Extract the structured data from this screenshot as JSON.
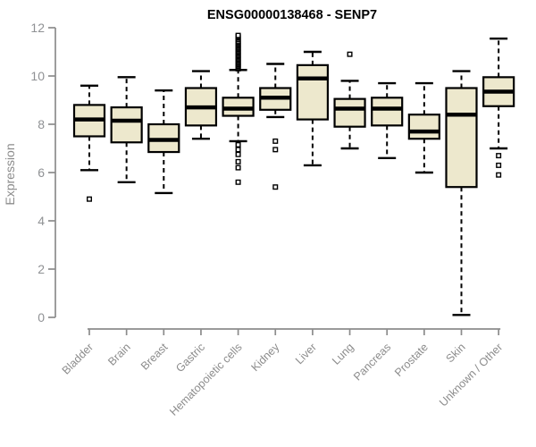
{
  "title": "ENSG00000138468 - SENP7",
  "colors": {
    "background": "#ffffff",
    "box_fill": "#ede8cd",
    "box_stroke": "#000000",
    "median": "#000000",
    "whisker": "#000000",
    "outlier_stroke": "#000000",
    "outlier_fill": "#ffffff",
    "axis": "#8c8c8c",
    "tick_label": "#8f9194",
    "category_label": "#8c8c8c",
    "title_color": "#000000"
  },
  "chart_data": {
    "type": "boxplot",
    "title": "ENSG00000138468 - SENP7",
    "xlabel": "",
    "ylabel": "Expression",
    "ylim": [
      0,
      12
    ],
    "yticks": [
      0,
      2,
      4,
      6,
      8,
      10,
      12
    ],
    "grid": false,
    "legend": false,
    "categories": [
      "Bladder",
      "Brain",
      "Breast",
      "Gastric",
      "Hematopoietic cells",
      "Kidney",
      "Liver",
      "Lung",
      "Pancreas",
      "Prostate",
      "Skin",
      "Unknown / Other"
    ],
    "series": [
      {
        "name": "Bladder",
        "whisker_low": 6.1,
        "q1": 7.5,
        "median": 8.2,
        "q3": 8.8,
        "whisker_high": 9.6,
        "outliers": [
          4.9
        ]
      },
      {
        "name": "Brain",
        "whisker_low": 5.6,
        "q1": 7.25,
        "median": 8.15,
        "q3": 8.7,
        "whisker_high": 9.95,
        "outliers": []
      },
      {
        "name": "Breast",
        "whisker_low": 5.15,
        "q1": 6.85,
        "median": 7.35,
        "q3": 8.0,
        "whisker_high": 9.4,
        "outliers": []
      },
      {
        "name": "Gastric",
        "whisker_low": 7.4,
        "q1": 7.95,
        "median": 8.7,
        "q3": 9.5,
        "whisker_high": 10.2,
        "outliers": []
      },
      {
        "name": "Hematopoietic cells",
        "whisker_low": 7.3,
        "q1": 8.35,
        "median": 8.65,
        "q3": 9.1,
        "whisker_high": 10.25,
        "outliers": [
          10.3,
          10.35,
          10.4,
          10.45,
          10.5,
          10.55,
          10.6,
          10.65,
          10.7,
          10.75,
          10.8,
          10.85,
          10.9,
          10.95,
          11.0,
          11.05,
          11.1,
          11.15,
          11.2,
          11.25,
          11.3,
          11.35,
          11.4,
          11.45,
          11.52,
          11.58,
          11.63,
          11.68,
          7.15,
          6.95,
          6.75,
          6.45,
          6.2,
          5.6
        ]
      },
      {
        "name": "Kidney",
        "whisker_low": 8.3,
        "q1": 8.6,
        "median": 9.1,
        "q3": 9.5,
        "whisker_high": 10.5,
        "outliers": [
          7.3,
          6.95,
          5.4
        ]
      },
      {
        "name": "Liver",
        "whisker_low": 6.3,
        "q1": 8.2,
        "median": 9.9,
        "q3": 10.45,
        "whisker_high": 11.0,
        "outliers": []
      },
      {
        "name": "Lung",
        "whisker_low": 7.0,
        "q1": 7.9,
        "median": 8.65,
        "q3": 9.05,
        "whisker_high": 9.8,
        "outliers": [
          10.9
        ]
      },
      {
        "name": "Pancreas",
        "whisker_low": 6.6,
        "q1": 7.95,
        "median": 8.65,
        "q3": 9.1,
        "whisker_high": 9.7,
        "outliers": []
      },
      {
        "name": "Prostate",
        "whisker_low": 6.0,
        "q1": 7.4,
        "median": 7.7,
        "q3": 8.4,
        "whisker_high": 9.7,
        "outliers": []
      },
      {
        "name": "Skin",
        "whisker_low": 0.1,
        "q1": 5.4,
        "median": 8.4,
        "q3": 9.5,
        "whisker_high": 10.2,
        "outliers": []
      },
      {
        "name": "Unknown / Other",
        "whisker_low": 7.0,
        "q1": 8.75,
        "median": 9.35,
        "q3": 9.95,
        "whisker_high": 11.55,
        "outliers": [
          6.7,
          6.3,
          5.9
        ]
      }
    ]
  }
}
